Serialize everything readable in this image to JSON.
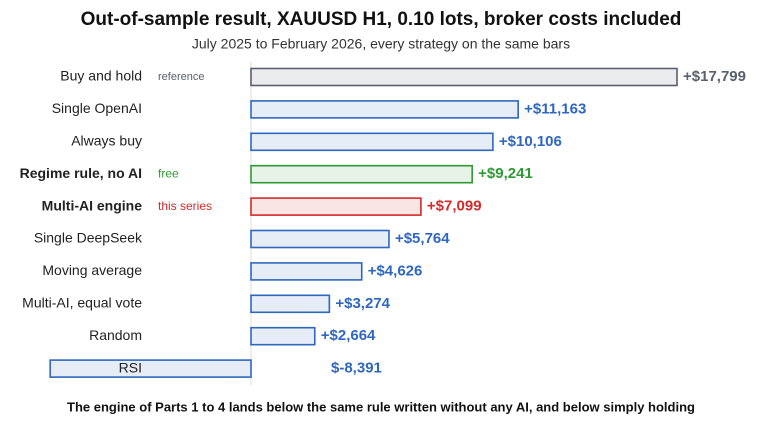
{
  "chart_data": {
    "type": "barh",
    "title": "Out-of-sample result, XAUUSD H1, 0.10 lots, broker costs included",
    "subtitle": "July 2025 to February 2026, every strategy on the same bars",
    "categories": [
      "Buy and hold",
      "Single OpenAI",
      "Always buy",
      "Regime rule, no AI",
      "Multi-AI engine",
      "Single DeepSeek",
      "Moving average",
      "Multi-AI, equal vote",
      "Random",
      "RSI"
    ],
    "bold_categories": [
      false,
      false,
      false,
      true,
      true,
      false,
      false,
      false,
      false,
      false
    ],
    "tags": [
      "reference",
      null,
      null,
      "free",
      "this series",
      null,
      null,
      null,
      null,
      null
    ],
    "values": [
      17799,
      11163,
      10106,
      9241,
      7099,
      5764,
      4626,
      3274,
      2664,
      -8391
    ],
    "value_labels": [
      "+$17,799",
      "+$11,163",
      "+$10,106",
      "+$9,241",
      "+$7,099",
      "+$5,764",
      "+$4,626",
      "+$3,274",
      "+$2,664",
      "$-8,391"
    ],
    "colors": [
      "#59606e",
      "#2f67c0",
      "#2f67c0",
      "#2f9a32",
      "#d42a2a",
      "#2f67c0",
      "#2f67c0",
      "#2f67c0",
      "#2f67c0",
      "#2f67c0"
    ],
    "footnote": "The engine of Parts 1 to 4 lands below the same rule written without any AI, and below simply holding"
  }
}
